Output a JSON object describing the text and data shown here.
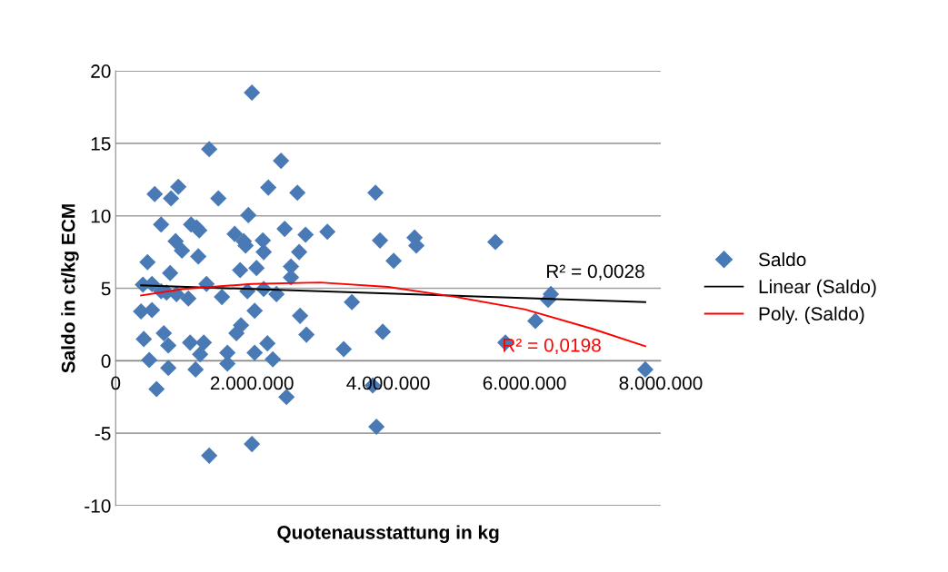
{
  "chart_data": {
    "type": "scatter",
    "xlabel": "Quotenausstattung in kg",
    "ylabel": "Saldo in ct/kg ECM",
    "xlim": [
      0,
      8000000
    ],
    "ylim": [
      -10,
      20
    ],
    "xticks": [
      {
        "value": 0,
        "label": "0"
      },
      {
        "value": 2000000,
        "label": "2.000.000"
      },
      {
        "value": 4000000,
        "label": "4.000.000"
      },
      {
        "value": 6000000,
        "label": "6.000.000"
      },
      {
        "value": 8000000,
        "label": "8.000.000"
      }
    ],
    "yticks": [
      -10,
      -5,
      0,
      5,
      10,
      15,
      20
    ],
    "grid": "y",
    "legend": "right",
    "series": [
      {
        "name": "Saldo",
        "color": "#4a7ab5",
        "marker": "diamond",
        "x": [
          400000,
          373000,
          533000,
          413000,
          467000,
          493000,
          573000,
          600000,
          667000,
          533000,
          667000,
          800000,
          707000,
          747000,
          773000,
          773000,
          813000,
          893000,
          880000,
          920000,
          973000,
          1067000,
          1093000,
          1107000,
          1173000,
          1187000,
          1213000,
          1227000,
          1240000,
          1293000,
          1333000,
          1373000,
          1373000,
          1507000,
          1560000,
          1640000,
          1640000,
          1747000,
          1773000,
          1840000,
          1827000,
          1880000,
          1907000,
          1947000,
          1933000,
          2000000,
          2000000,
          2067000,
          2040000,
          2040000,
          2173000,
          2160000,
          2173000,
          2227000,
          2240000,
          2307000,
          2360000,
          2427000,
          2480000,
          2507000,
          2573000,
          2573000,
          2667000,
          2693000,
          2707000,
          2787000,
          2800000,
          3107000,
          3347000,
          3467000,
          3773000,
          3813000,
          3827000,
          3880000,
          3920000,
          4080000,
          4387000,
          4413000,
          5573000,
          5720000,
          6160000,
          6347000,
          6387000,
          7773000
        ],
        "values": [
          5.25,
          3.4,
          3.5,
          1.5,
          6.8,
          0.05,
          11.5,
          -1.95,
          9.4,
          5.3,
          4.8,
          6.05,
          1.9,
          4.7,
          1.05,
          -0.5,
          11.2,
          4.6,
          8.25,
          12.0,
          7.6,
          4.3,
          1.25,
          9.4,
          -0.6,
          9.2,
          7.2,
          9.0,
          0.45,
          1.25,
          5.3,
          14.6,
          -6.55,
          11.2,
          4.4,
          0.55,
          -0.2,
          8.75,
          1.9,
          2.45,
          6.25,
          8.25,
          7.95,
          10.05,
          4.8,
          18.5,
          -5.75,
          6.4,
          3.45,
          0.55,
          4.95,
          8.3,
          7.5,
          1.2,
          11.95,
          0.1,
          4.6,
          13.8,
          9.1,
          -2.5,
          6.5,
          5.75,
          11.6,
          7.5,
          3.1,
          8.7,
          1.8,
          8.9,
          0.8,
          4.05,
          -1.7,
          11.6,
          -4.55,
          8.3,
          2.0,
          6.9,
          8.5,
          7.95,
          8.2,
          1.25,
          2.75,
          4.2,
          4.6,
          -0.6
        ]
      },
      {
        "name": "Linear (Saldo)",
        "type": "line",
        "color": "#000000",
        "x": [
          373000,
          7773000
        ],
        "values": [
          5.2,
          4.05
        ]
      },
      {
        "name": "Poly. (Saldo)",
        "type": "line",
        "color": "#ff0000",
        "x": [
          373000,
          1000000,
          2000000,
          3000000,
          4000000,
          5000000,
          6000000,
          7000000,
          7773000
        ],
        "values": [
          4.5,
          4.95,
          5.3,
          5.4,
          5.1,
          4.4,
          3.55,
          2.2,
          1.0
        ]
      }
    ],
    "annotations": [
      "R² = 0,0028",
      "R² = 0,0198"
    ]
  }
}
